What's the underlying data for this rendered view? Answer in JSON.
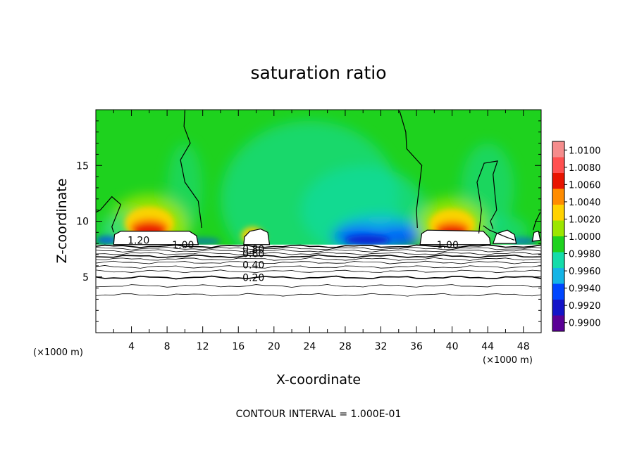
{
  "chart_data": {
    "type": "heatmap",
    "title": "saturation ratio",
    "xlabel": "X-coordinate",
    "ylabel": "Z-coordinate",
    "x_unit": "(×1000 m)",
    "z_unit": "(×1000 m)",
    "xlim": [
      0,
      50
    ],
    "ylim": [
      0,
      20
    ],
    "xticks": [
      "4",
      "8",
      "12",
      "16",
      "20",
      "24",
      "28",
      "32",
      "36",
      "40",
      "44",
      "48"
    ],
    "yticks": [
      "5",
      "10",
      "15"
    ],
    "colorbar": {
      "labels": [
        "1.0100",
        "1.0080",
        "1.0060",
        "1.0040",
        "1.0020",
        "1.0000",
        "0.9980",
        "0.9960",
        "0.9940",
        "0.9920",
        "0.9900"
      ],
      "colors": [
        "#f58c8c",
        "#ff5050",
        "#e81400",
        "#ff8c00",
        "#ffd200",
        "#9ce600",
        "#1ed21e",
        "#14dcaa",
        "#14b4e6",
        "#0046ff",
        "#1414c8",
        "#5a0096"
      ]
    },
    "background_level": 1.0,
    "contour_labels": [
      {
        "text": "1.20"
      },
      {
        "text": "1.00"
      },
      {
        "text": "0.80"
      },
      {
        "text": "0.60"
      },
      {
        "text": "0.40"
      },
      {
        "text": "0.20"
      },
      {
        "text": "1.00"
      }
    ],
    "footer": "CONTOUR INTERVAL = 1.000E-01"
  }
}
